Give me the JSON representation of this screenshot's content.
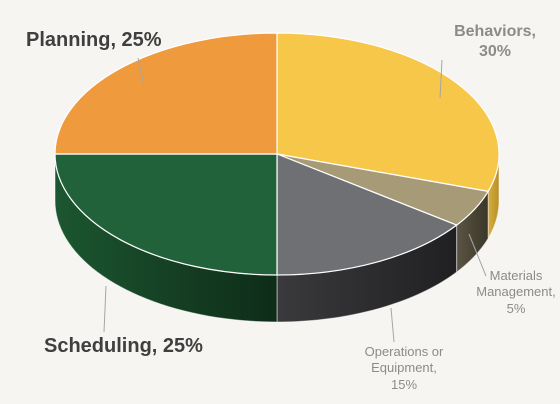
{
  "chart_data": {
    "type": "pie",
    "style": "3d",
    "background": "#f6f5f2",
    "slices": [
      {
        "label": "Behaviors",
        "value": 30,
        "value_label": "30%",
        "color": "#f7c74a",
        "side_color": "#c9a032"
      },
      {
        "label": "Materials Management",
        "value": 5,
        "value_label": "5%",
        "color": "#a69a77",
        "side_color": "#4a4536"
      },
      {
        "label": "Operations or Equipment",
        "value": 15,
        "value_label": "15%",
        "color": "#6f7074",
        "side_color": "#2d2d30"
      },
      {
        "label": "Scheduling",
        "value": 25,
        "value_label": "25%",
        "color": "#22623a",
        "side_color": "#143b22"
      },
      {
        "label": "Planning",
        "value": 25,
        "value_label": "25%",
        "color": "#f09a3e",
        "side_color": "#c2782a"
      }
    ],
    "labels": {
      "planning": "Planning, 25%",
      "behaviors_line1": "Behaviors,",
      "behaviors_line2": "30%",
      "materials_line1": "Materials",
      "materials_line2": "Management,",
      "materials_line3": "5%",
      "operations_line1": "Operations or",
      "operations_line2": "Equipment,",
      "operations_line3": "15%",
      "scheduling": "Scheduling, 25%"
    },
    "label_colors": {
      "dark": "#3f3f3f",
      "muted": "#8b8b8b"
    }
  }
}
